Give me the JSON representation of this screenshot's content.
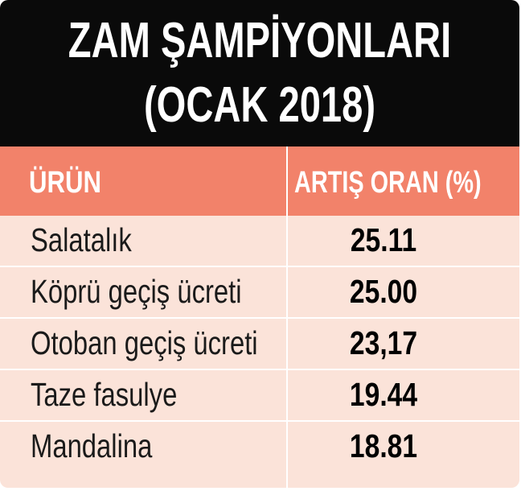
{
  "chart_data": {
    "type": "table",
    "title_line1": "ZAM ŞAMPİYONLARI",
    "title_line2": "(OCAK 2018)",
    "columns": [
      "ÜRÜN",
      "ARTIŞ ORAN (%)"
    ],
    "rows": [
      {
        "product": "Salatalık",
        "value": "25.11"
      },
      {
        "product": "Köprü geçiş ücreti",
        "value": "25.00"
      },
      {
        "product": "Otoban geçiş ücreti",
        "value": "23,17"
      },
      {
        "product": "Taze fasulye",
        "value": "19.44"
      },
      {
        "product": "Mandalina",
        "value": "18.81"
      }
    ]
  },
  "colors": {
    "header_bg": "#0a0a0a",
    "column_header_bg": "#f2826a",
    "row_bg": "#fbe3d9"
  }
}
